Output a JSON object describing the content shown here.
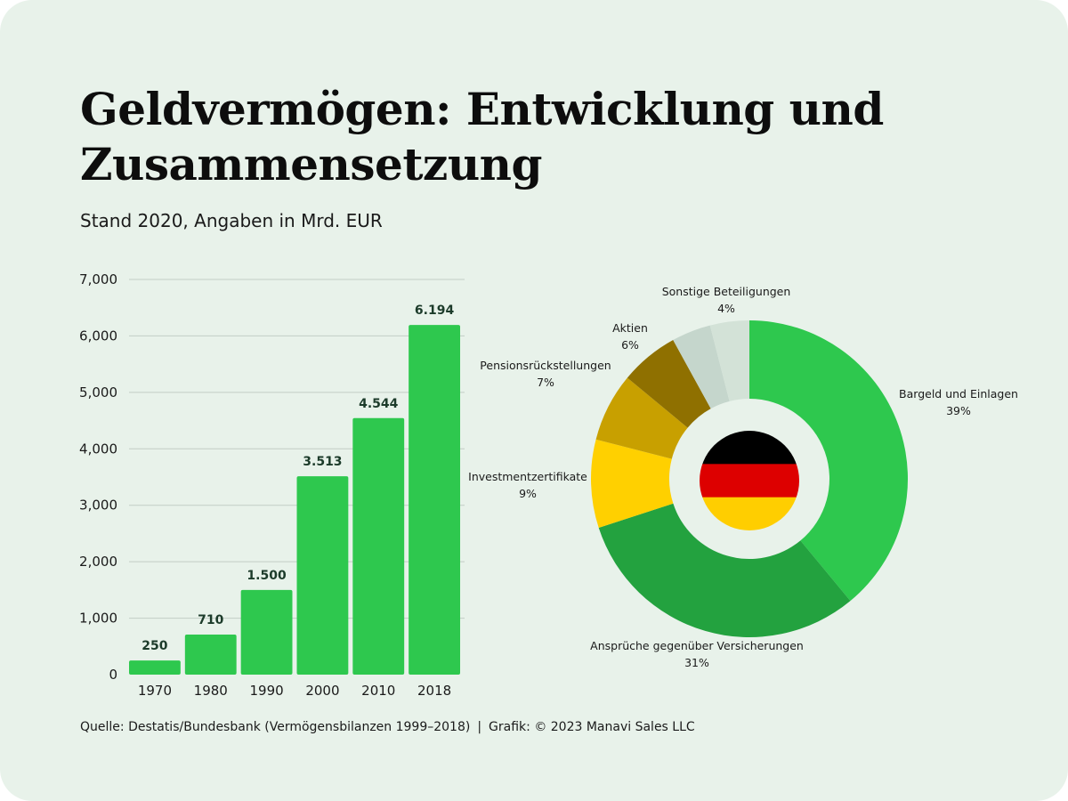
{
  "header": {
    "title": "Geldvermögen: Entwicklung und Zusammensetzung",
    "subtitle": "Stand 2020, Angaben in Mrd. EUR"
  },
  "footer": {
    "source": "Quelle: Destatis/Bundesbank (Vermögensbilanzen 1999–2018)",
    "separator": "|",
    "credit": "Grafik: © 2023 Manavi Sales LLC"
  },
  "chart_data": [
    {
      "type": "bar",
      "categories": [
        "1970",
        "1980",
        "1990",
        "2000",
        "2010",
        "2018"
      ],
      "values": [
        250,
        710,
        1500,
        3513,
        4544,
        6194
      ],
      "value_labels": [
        "250",
        "710",
        "1.500",
        "3.513",
        "4.544",
        "6.194"
      ],
      "ylim": [
        0,
        7000
      ],
      "yticks": [
        0,
        1000,
        2000,
        3000,
        4000,
        5000,
        6000,
        7000
      ],
      "ytick_labels": [
        "0",
        "1,000",
        "2,000",
        "3,000",
        "4,000",
        "5,000",
        "6,000",
        "7,000"
      ],
      "grid": true,
      "color": "#2ec84e"
    },
    {
      "type": "pie",
      "donut": true,
      "center_icon": "germany-flag-icon",
      "slices": [
        {
          "label": "Bargeld und Einlagen",
          "percent_label": "39%",
          "value": 39,
          "color": "#2ec84e"
        },
        {
          "label": "Ansprüche gegenüber Versicherungen",
          "percent_label": "31%",
          "value": 31,
          "color": "#23a23f"
        },
        {
          "label": "Investmentzertifikate",
          "percent_label": "9%",
          "value": 9,
          "color": "#ffd000"
        },
        {
          "label": "Pensionsrückstellungen",
          "percent_label": "7%",
          "value": 7,
          "color": "#c8a000"
        },
        {
          "label": "Aktien",
          "percent_label": "6%",
          "value": 6,
          "color": "#8f7000"
        },
        {
          "label": "Sonstige Beteiligungen",
          "percent_label": "4%",
          "value": 4,
          "color": "#c5d6cc"
        },
        {
          "label": "",
          "percent_label": "",
          "value": 4,
          "color": "#d3e2d7"
        }
      ]
    }
  ],
  "flag_colors": [
    "#000000",
    "#dd0000",
    "#ffce00"
  ]
}
